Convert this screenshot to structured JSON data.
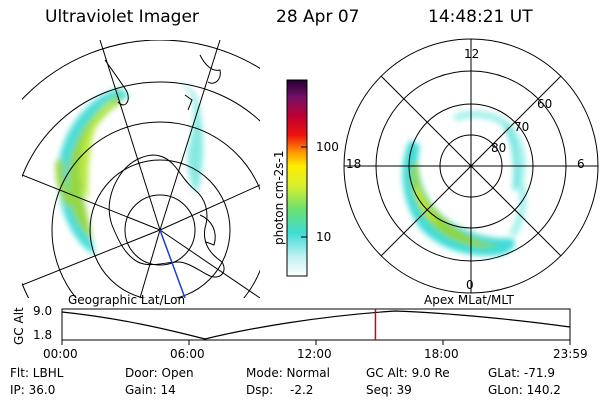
{
  "header": {
    "title": "Ultraviolet Imager",
    "date": "28 Apr 07",
    "time": "14:48:21 UT"
  },
  "colorbar": {
    "unit_label": "photon cm-2s-1",
    "tick_100": "100",
    "tick_10": "10"
  },
  "geo_panel": {
    "caption": "Geographic Lat/Lon"
  },
  "mag_panel": {
    "caption": "Apex MLat/MLT",
    "mlt_12": "12",
    "mlt_18": "18",
    "mlt_6": "6",
    "mlt_0": "0",
    "lat_60": "60",
    "lat_70": "70",
    "lat_80": "80"
  },
  "orbit": {
    "ylabel": "GC Alt",
    "ytick_high": "9.0",
    "ytick_low": "1.8",
    "xticks": [
      "00:00",
      "06:00",
      "12:00",
      "18:00",
      "23:59"
    ],
    "current_time_fraction": 0.617
  },
  "status": {
    "flt": "Flt: LBHL",
    "ip": "IP: 36.0",
    "door": "Door: Open",
    "gain": "Gain: 14",
    "mode": "Mode: Normal",
    "dsp_label": "Dsp:",
    "dsp_value": "-2.2",
    "gc_alt": "GC Alt: 9.0 Re",
    "seq": "Seq: 39",
    "glat": "GLat: -71.9",
    "glon": "GLon: 140.2"
  },
  "colors": {
    "background": "#ffffff",
    "foreground": "#000000",
    "orbit_marker": "#dd0000",
    "auroral_peak": "#8fd63a",
    "auroral_mid": "#33d8c8",
    "auroral_low": "#b8f0ee"
  }
}
